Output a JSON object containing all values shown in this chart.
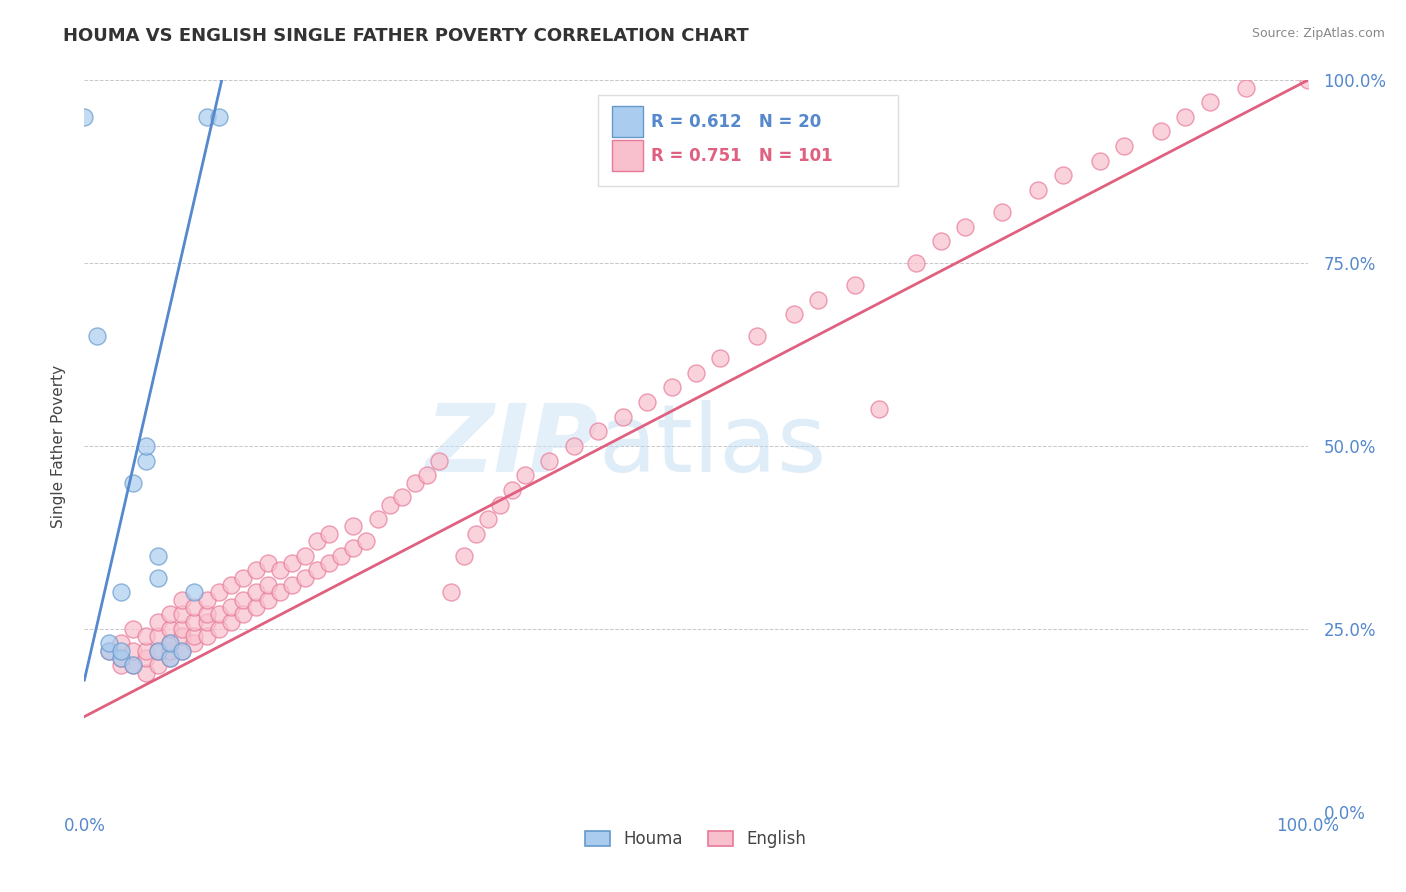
{
  "title": "HOUMA VS ENGLISH SINGLE FATHER POVERTY CORRELATION CHART",
  "source_text": "Source: ZipAtlas.com",
  "ylabel": "Single Father Poverty",
  "xlim": [
    0,
    1
  ],
  "ylim": [
    0,
    1
  ],
  "xtick_labels": [
    "0.0%",
    "100.0%"
  ],
  "ytick_labels": [
    "100.0%",
    "75.0%",
    "50.0%",
    "25.0%",
    "0.0%"
  ],
  "ytick_positions": [
    1.0,
    0.75,
    0.5,
    0.25,
    0.0
  ],
  "grid_color": "#c8c8c8",
  "background_color": "#ffffff",
  "houma_fill_color": "#aaccee",
  "houma_edge_color": "#6699cc",
  "english_fill_color": "#f8c0cc",
  "english_edge_color": "#e87898",
  "houma_line_color": "#5588cc",
  "english_line_color": "#e06080",
  "axis_color": "#5588cc",
  "houma_R": "0.612",
  "houma_N": "20",
  "english_R": "0.751",
  "english_N": "101",
  "legend_label_houma": "Houma",
  "legend_label_english": "English",
  "watermark_zip": "ZIP",
  "watermark_atlas": "atlas",
  "houma_x": [
    0.0,
    0.01,
    0.02,
    0.02,
    0.03,
    0.03,
    0.03,
    0.04,
    0.04,
    0.05,
    0.05,
    0.06,
    0.06,
    0.06,
    0.07,
    0.07,
    0.08,
    0.09,
    0.1,
    0.11
  ],
  "houma_y": [
    0.95,
    0.65,
    0.22,
    0.23,
    0.21,
    0.22,
    0.3,
    0.2,
    0.45,
    0.48,
    0.5,
    0.22,
    0.32,
    0.35,
    0.21,
    0.23,
    0.22,
    0.3,
    0.95,
    0.95
  ],
  "english_x": [
    0.02,
    0.03,
    0.03,
    0.03,
    0.04,
    0.04,
    0.04,
    0.05,
    0.05,
    0.05,
    0.05,
    0.06,
    0.06,
    0.06,
    0.06,
    0.07,
    0.07,
    0.07,
    0.07,
    0.07,
    0.08,
    0.08,
    0.08,
    0.08,
    0.08,
    0.09,
    0.09,
    0.09,
    0.09,
    0.1,
    0.1,
    0.1,
    0.1,
    0.11,
    0.11,
    0.11,
    0.12,
    0.12,
    0.12,
    0.13,
    0.13,
    0.13,
    0.14,
    0.14,
    0.14,
    0.15,
    0.15,
    0.15,
    0.16,
    0.16,
    0.17,
    0.17,
    0.18,
    0.18,
    0.19,
    0.19,
    0.2,
    0.2,
    0.21,
    0.22,
    0.22,
    0.23,
    0.24,
    0.25,
    0.26,
    0.27,
    0.28,
    0.29,
    0.3,
    0.31,
    0.32,
    0.33,
    0.34,
    0.35,
    0.36,
    0.38,
    0.4,
    0.42,
    0.44,
    0.46,
    0.48,
    0.5,
    0.52,
    0.55,
    0.58,
    0.6,
    0.63,
    0.65,
    0.68,
    0.7,
    0.72,
    0.75,
    0.78,
    0.8,
    0.83,
    0.85,
    0.88,
    0.9,
    0.92,
    0.95,
    1.0
  ],
  "english_y": [
    0.22,
    0.2,
    0.21,
    0.23,
    0.2,
    0.22,
    0.25,
    0.19,
    0.21,
    0.22,
    0.24,
    0.2,
    0.22,
    0.24,
    0.26,
    0.21,
    0.22,
    0.23,
    0.25,
    0.27,
    0.22,
    0.24,
    0.25,
    0.27,
    0.29,
    0.23,
    0.24,
    0.26,
    0.28,
    0.24,
    0.26,
    0.27,
    0.29,
    0.25,
    0.27,
    0.3,
    0.26,
    0.28,
    0.31,
    0.27,
    0.29,
    0.32,
    0.28,
    0.3,
    0.33,
    0.29,
    0.31,
    0.34,
    0.3,
    0.33,
    0.31,
    0.34,
    0.32,
    0.35,
    0.33,
    0.37,
    0.34,
    0.38,
    0.35,
    0.36,
    0.39,
    0.37,
    0.4,
    0.42,
    0.43,
    0.45,
    0.46,
    0.48,
    0.3,
    0.35,
    0.38,
    0.4,
    0.42,
    0.44,
    0.46,
    0.48,
    0.5,
    0.52,
    0.54,
    0.56,
    0.58,
    0.6,
    0.62,
    0.65,
    0.68,
    0.7,
    0.72,
    0.55,
    0.75,
    0.78,
    0.8,
    0.82,
    0.85,
    0.87,
    0.89,
    0.91,
    0.93,
    0.95,
    0.97,
    0.99,
    1.0
  ],
  "houma_line_x": [
    0.0,
    0.115
  ],
  "houma_line_y": [
    0.18,
    1.02
  ],
  "english_line_x": [
    0.0,
    1.0
  ],
  "english_line_y": [
    0.13,
    1.0
  ]
}
